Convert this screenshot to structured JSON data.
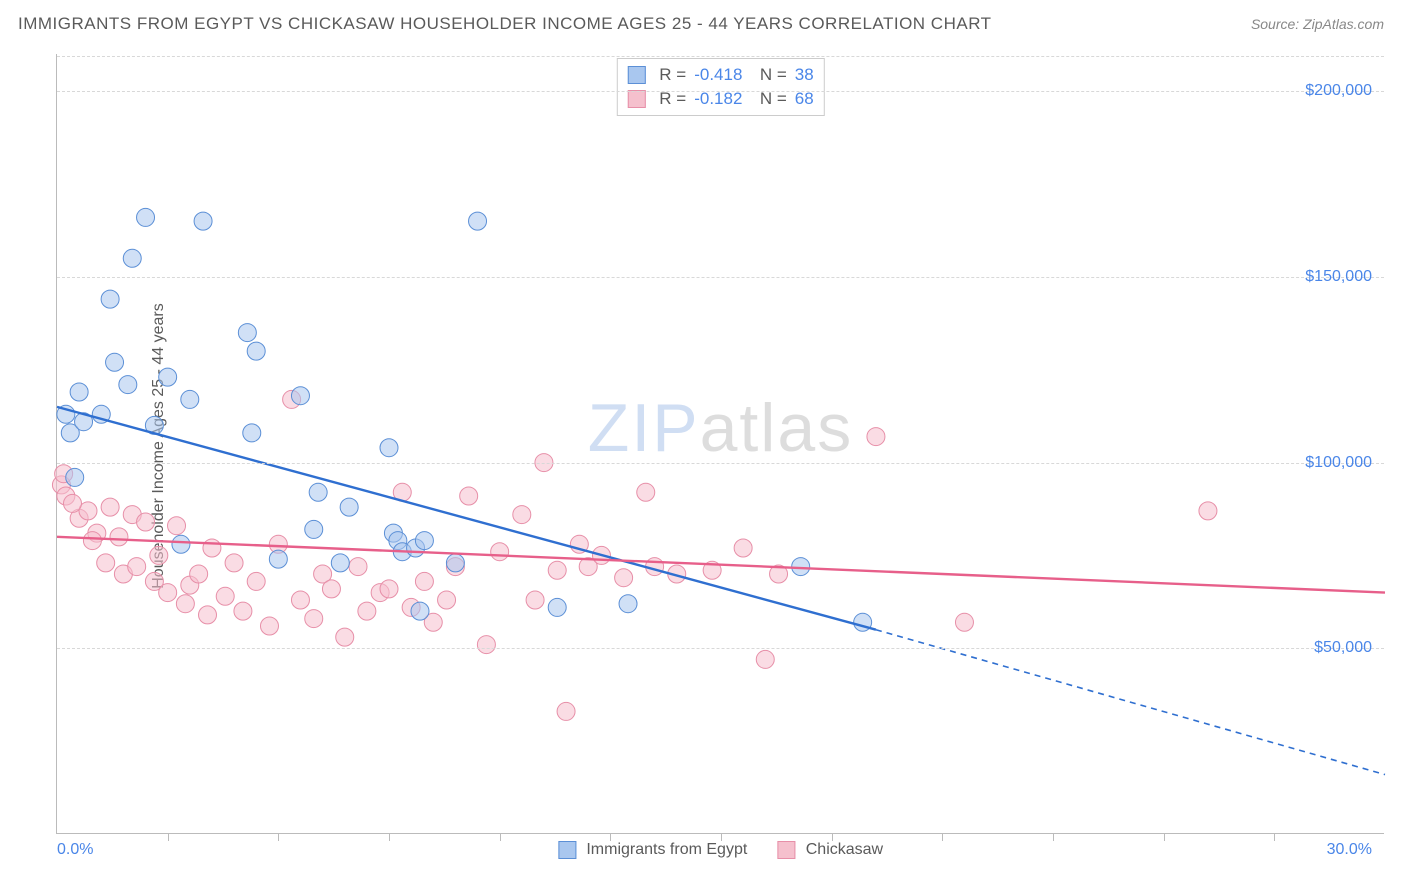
{
  "title": "IMMIGRANTS FROM EGYPT VS CHICKASAW HOUSEHOLDER INCOME AGES 25 - 44 YEARS CORRELATION CHART",
  "source": "Source: ZipAtlas.com",
  "ylabel": "Householder Income Ages 25 - 44 years",
  "watermark": {
    "part1": "ZIP",
    "part2": "atlas"
  },
  "chart": {
    "type": "scatter",
    "background_color": "#ffffff",
    "grid_color": "#d8d8d8",
    "axis_color": "#bbbbbb",
    "tick_label_color": "#4a86e8",
    "label_fontsize": 16,
    "title_fontsize": 17,
    "xlim": [
      0,
      30
    ],
    "ylim": [
      0,
      210000
    ],
    "x_tick_step": 2.5,
    "y_grid_values": [
      50000,
      100000,
      150000,
      200000
    ],
    "y_tick_labels": [
      "$50,000",
      "$100,000",
      "$150,000",
      "$200,000"
    ],
    "x_min_label": "0.0%",
    "x_max_label": "30.0%",
    "marker_radius": 9,
    "marker_opacity": 0.55,
    "line_width": 2.4,
    "series": [
      {
        "name": "Immigrants from Egypt",
        "color_fill": "#a9c7ef",
        "color_stroke": "#5b8fd6",
        "line_color": "#2f6fd0",
        "R": "-0.418",
        "N": "38",
        "trend": {
          "x1": 0,
          "y1": 115000,
          "x2": 18.5,
          "y2": 55000,
          "dash_to_x": 30,
          "dash_to_y": 16000
        },
        "points": [
          [
            0.2,
            113000
          ],
          [
            0.3,
            108000
          ],
          [
            0.4,
            96000
          ],
          [
            0.5,
            119000
          ],
          [
            0.6,
            111000
          ],
          [
            1.0,
            113000
          ],
          [
            1.2,
            144000
          ],
          [
            1.3,
            127000
          ],
          [
            1.6,
            121000
          ],
          [
            1.7,
            155000
          ],
          [
            2.0,
            166000
          ],
          [
            2.2,
            110000
          ],
          [
            2.5,
            123000
          ],
          [
            2.8,
            78000
          ],
          [
            3.0,
            117000
          ],
          [
            3.3,
            165000
          ],
          [
            4.3,
            135000
          ],
          [
            4.4,
            108000
          ],
          [
            4.5,
            130000
          ],
          [
            5.0,
            74000
          ],
          [
            5.5,
            118000
          ],
          [
            5.8,
            82000
          ],
          [
            5.9,
            92000
          ],
          [
            6.4,
            73000
          ],
          [
            6.6,
            88000
          ],
          [
            7.5,
            104000
          ],
          [
            7.6,
            81000
          ],
          [
            7.7,
            79000
          ],
          [
            7.8,
            76000
          ],
          [
            8.1,
            77000
          ],
          [
            8.2,
            60000
          ],
          [
            8.3,
            79000
          ],
          [
            9.0,
            73000
          ],
          [
            9.5,
            165000
          ],
          [
            11.3,
            61000
          ],
          [
            12.9,
            62000
          ],
          [
            16.8,
            72000
          ],
          [
            18.2,
            57000
          ]
        ]
      },
      {
        "name": "Chickasaw",
        "color_fill": "#f5c0cd",
        "color_stroke": "#e78fa8",
        "line_color": "#e75f8a",
        "R": "-0.182",
        "N": "68",
        "trend": {
          "x1": 0,
          "y1": 80000,
          "x2": 30,
          "y2": 65000
        },
        "points": [
          [
            0.1,
            94000
          ],
          [
            0.2,
            91000
          ],
          [
            0.5,
            85000
          ],
          [
            0.7,
            87000
          ],
          [
            0.9,
            81000
          ],
          [
            1.2,
            88000
          ],
          [
            1.4,
            80000
          ],
          [
            1.5,
            70000
          ],
          [
            1.7,
            86000
          ],
          [
            1.8,
            72000
          ],
          [
            2.0,
            84000
          ],
          [
            2.2,
            68000
          ],
          [
            2.3,
            75000
          ],
          [
            2.5,
            65000
          ],
          [
            2.7,
            83000
          ],
          [
            2.9,
            62000
          ],
          [
            3.0,
            67000
          ],
          [
            3.2,
            70000
          ],
          [
            3.4,
            59000
          ],
          [
            3.5,
            77000
          ],
          [
            3.8,
            64000
          ],
          [
            4.0,
            73000
          ],
          [
            4.2,
            60000
          ],
          [
            4.5,
            68000
          ],
          [
            4.8,
            56000
          ],
          [
            5.0,
            78000
          ],
          [
            5.3,
            117000
          ],
          [
            5.5,
            63000
          ],
          [
            5.8,
            58000
          ],
          [
            6.0,
            70000
          ],
          [
            6.2,
            66000
          ],
          [
            6.5,
            53000
          ],
          [
            6.8,
            72000
          ],
          [
            7.0,
            60000
          ],
          [
            7.3,
            65000
          ],
          [
            7.5,
            66000
          ],
          [
            7.8,
            92000
          ],
          [
            8.0,
            61000
          ],
          [
            8.3,
            68000
          ],
          [
            8.5,
            57000
          ],
          [
            8.8,
            63000
          ],
          [
            9.0,
            72000
          ],
          [
            9.3,
            91000
          ],
          [
            9.7,
            51000
          ],
          [
            10.0,
            76000
          ],
          [
            10.5,
            86000
          ],
          [
            10.8,
            63000
          ],
          [
            11.0,
            100000
          ],
          [
            11.3,
            71000
          ],
          [
            11.5,
            33000
          ],
          [
            11.8,
            78000
          ],
          [
            12.0,
            72000
          ],
          [
            12.3,
            75000
          ],
          [
            12.8,
            69000
          ],
          [
            13.3,
            92000
          ],
          [
            13.5,
            72000
          ],
          [
            14.0,
            70000
          ],
          [
            14.8,
            71000
          ],
          [
            15.5,
            77000
          ],
          [
            16.0,
            47000
          ],
          [
            16.3,
            70000
          ],
          [
            18.5,
            107000
          ],
          [
            20.5,
            57000
          ],
          [
            26.0,
            87000
          ],
          [
            0.15,
            97000
          ],
          [
            0.35,
            89000
          ],
          [
            0.8,
            79000
          ],
          [
            1.1,
            73000
          ]
        ]
      }
    ]
  }
}
